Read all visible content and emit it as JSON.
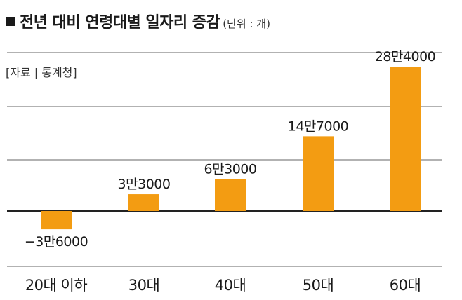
{
  "title": "전년 대비 연령대별 일자리 증감",
  "unit": "(단위 : 개)",
  "source": "[자료 | 통계청]",
  "colors": {
    "bar": "#f39c12",
    "grid": "#666666",
    "axis": "#222222",
    "text": "#1a1a1a"
  },
  "chart_data": {
    "type": "bar",
    "categories": [
      "20대 이하",
      "30대",
      "40대",
      "50대",
      "60대"
    ],
    "values": [
      -36000,
      33000,
      63000,
      147000,
      284000
    ],
    "value_labels": [
      "−3만6000",
      "3만3000",
      "6만3000",
      "14만7000",
      "28만4000"
    ],
    "grid": true
  }
}
